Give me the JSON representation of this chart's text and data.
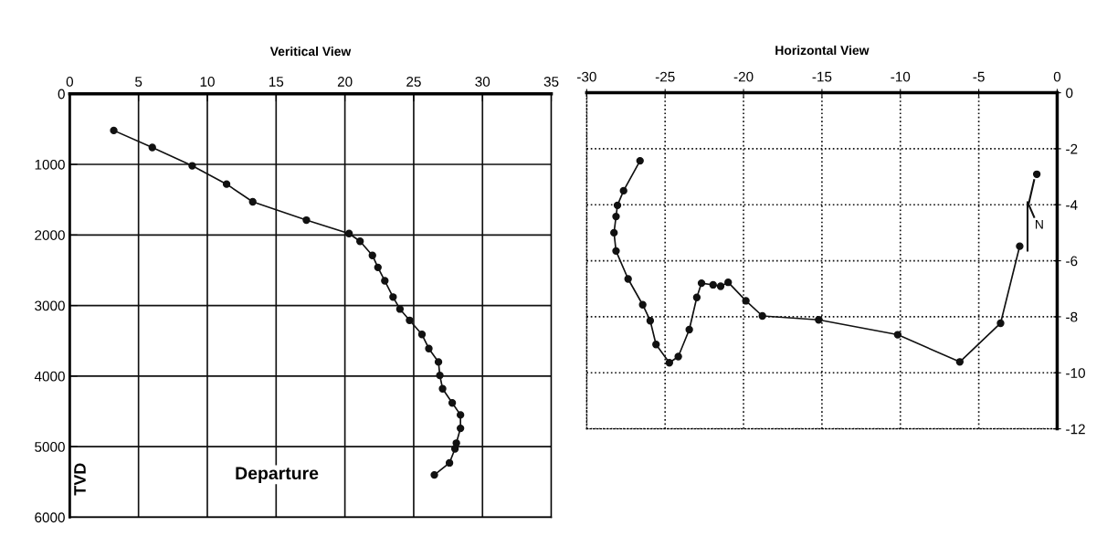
{
  "chart_data": [
    {
      "type": "line",
      "title": "Veritical View",
      "xlabel": "Departure",
      "ylabel": "TVD",
      "marker": "circle",
      "line_style": "solid",
      "grid": true,
      "series": [
        {
          "color": "#111111",
          "x": [
            3.2,
            6.0,
            8.9,
            11.4,
            13.3,
            17.2,
            20.3,
            21.1,
            22.0,
            22.4,
            22.9,
            23.5,
            24.0,
            24.7,
            25.6,
            26.1,
            26.8,
            26.9,
            27.1,
            27.8,
            28.4,
            28.4,
            28.1,
            28.0,
            27.6,
            26.5
          ],
          "values": [
            520,
            760,
            1020,
            1280,
            1530,
            1790,
            1980,
            2090,
            2290,
            2460,
            2650,
            2880,
            3050,
            3210,
            3410,
            3610,
            3800,
            3990,
            4180,
            4380,
            4550,
            4740,
            4950,
            5030,
            5230,
            5400
          ]
        }
      ],
      "xlim": [
        0,
        35
      ],
      "xticks": [
        0,
        5,
        10,
        15,
        20,
        25,
        30,
        35
      ],
      "ylim": [
        6000,
        0
      ],
      "yticks": [
        0,
        1000,
        2000,
        3000,
        4000,
        5000,
        6000
      ]
    },
    {
      "type": "line",
      "title": "Horizontal View",
      "marker": "circle",
      "line_style": "solid",
      "grid": true,
      "annotations": [
        "N"
      ],
      "series": [
        {
          "color": "#111111",
          "x": [
            -26.6,
            -27.65,
            -28.04,
            -28.13,
            -28.26,
            -28.13,
            -27.36,
            -26.43,
            -25.95,
            -25.58,
            -24.73,
            -24.16,
            -23.46,
            -22.98,
            -22.68,
            -21.94,
            -21.46,
            -20.98,
            -19.85,
            -18.8,
            -15.21,
            -10.17,
            -6.21,
            -3.61,
            -2.39
          ],
          "values": [
            -2.43,
            -3.5,
            -4.02,
            -4.42,
            -5.0,
            -5.65,
            -6.65,
            -7.57,
            -8.14,
            -8.99,
            -9.64,
            -9.42,
            -8.46,
            -7.31,
            -6.8,
            -6.86,
            -6.91,
            -6.77,
            -7.43,
            -7.97,
            -8.11,
            -8.64,
            -9.61,
            -8.23,
            -5.48
          ]
        },
        {
          "color": "#111111",
          "x": [
            -1.3
          ],
          "values": [
            -2.91
          ]
        }
      ],
      "xlim": [
        -30,
        0
      ],
      "xticks": [
        -30,
        -25,
        -20,
        -15,
        -10,
        -5,
        0
      ],
      "ylim": [
        -12,
        0
      ],
      "yticks": [
        -12,
        -10,
        -8,
        -6,
        -4,
        -2,
        0
      ]
    }
  ]
}
